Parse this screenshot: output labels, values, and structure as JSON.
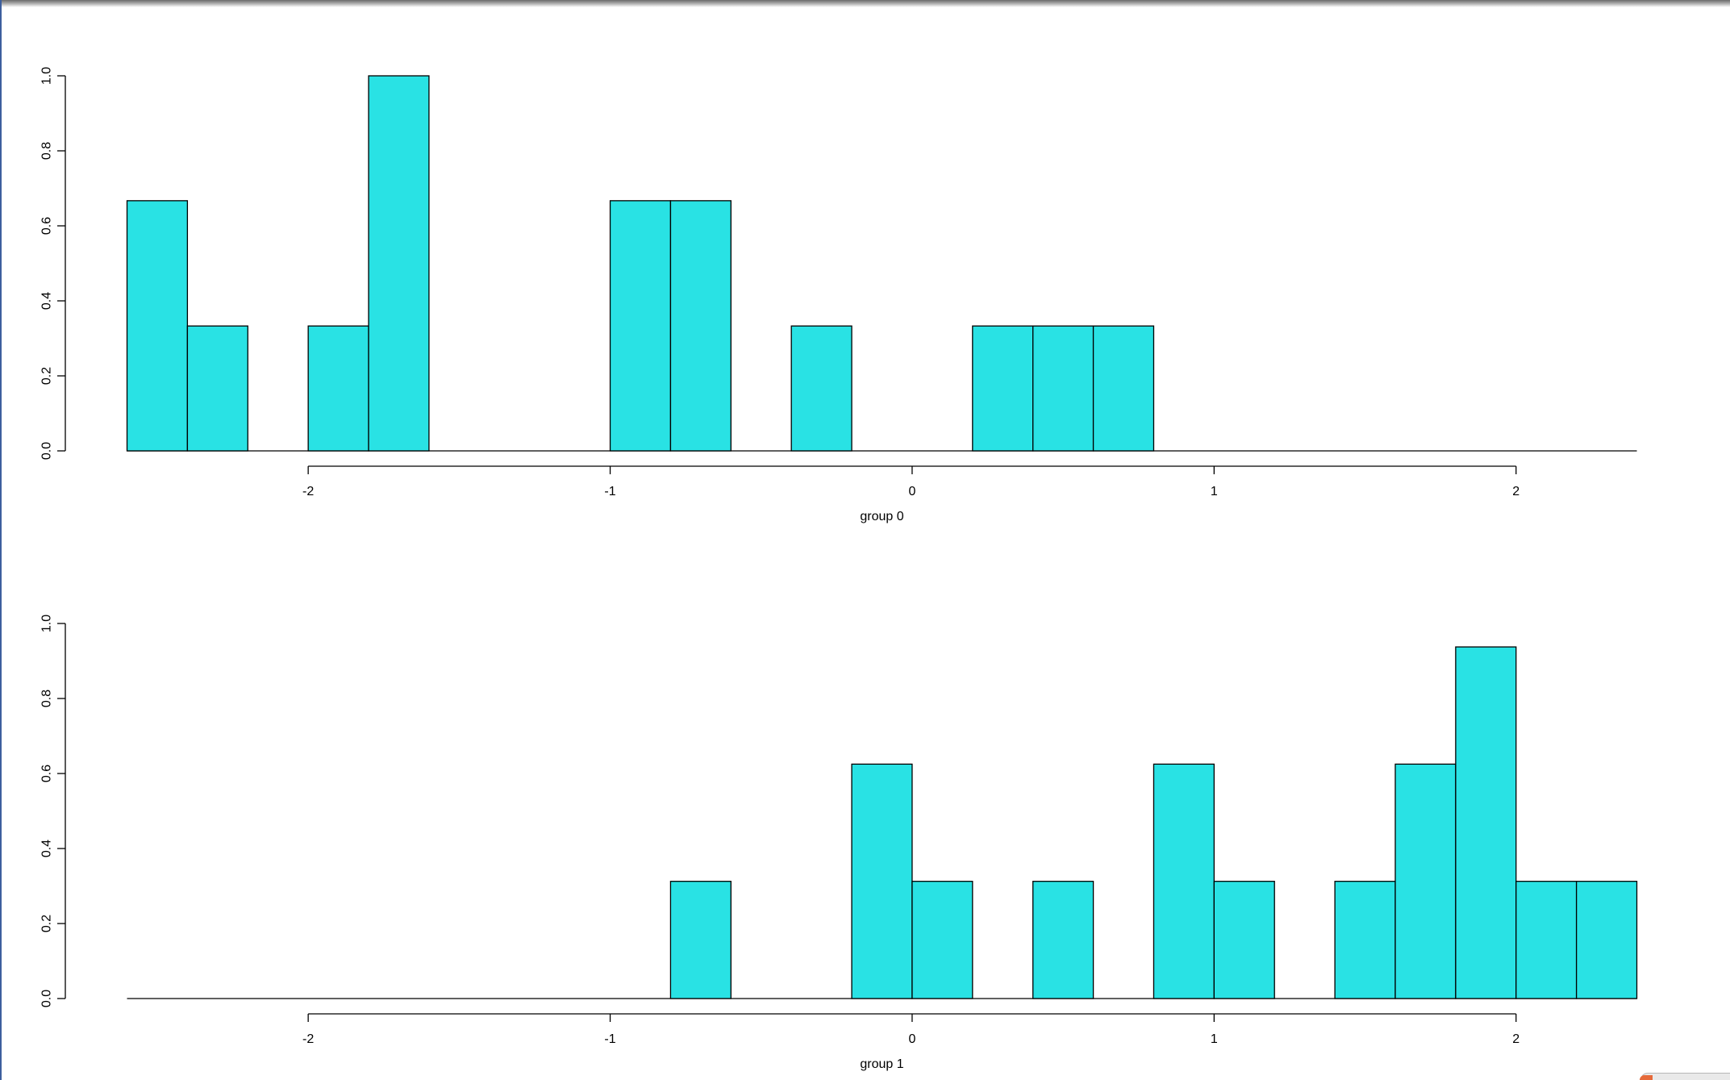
{
  "colors": {
    "bar_fill": "#29e2e4",
    "bar_stroke": "#000000"
  },
  "chart_data": [
    {
      "type": "bar",
      "xlabel": "group 0",
      "ylabel": "",
      "title": "",
      "xlim": [
        -2.6,
        2.4
      ],
      "ylim": [
        0,
        1
      ],
      "x_ticks": [
        -2,
        -1,
        0,
        1,
        2
      ],
      "x_tick_labels": [
        "-2",
        "-1",
        "0",
        "1",
        "2"
      ],
      "y_ticks": [
        0,
        0.2,
        0.4,
        0.6,
        0.8,
        1
      ],
      "y_tick_labels": [
        "0.0",
        "0.2",
        "0.4",
        "0.6",
        "0.8",
        "1.0"
      ],
      "bin_width": 0.2,
      "bins": [
        {
          "x0": -2.6,
          "value": 0.667
        },
        {
          "x0": -2.4,
          "value": 0.333
        },
        {
          "x0": -2.2,
          "value": 0
        },
        {
          "x0": -2.0,
          "value": 0.333
        },
        {
          "x0": -1.8,
          "value": 1.0
        },
        {
          "x0": -1.6,
          "value": 0
        },
        {
          "x0": -1.4,
          "value": 0
        },
        {
          "x0": -1.2,
          "value": 0
        },
        {
          "x0": -1.0,
          "value": 0.667
        },
        {
          "x0": -0.8,
          "value": 0.667
        },
        {
          "x0": -0.6,
          "value": 0
        },
        {
          "x0": -0.4,
          "value": 0.333
        },
        {
          "x0": -0.2,
          "value": 0
        },
        {
          "x0": 0.0,
          "value": 0
        },
        {
          "x0": 0.2,
          "value": 0.333
        },
        {
          "x0": 0.4,
          "value": 0.333
        },
        {
          "x0": 0.6,
          "value": 0.333
        },
        {
          "x0": 0.8,
          "value": 0
        },
        {
          "x0": 1.0,
          "value": 0
        },
        {
          "x0": 1.2,
          "value": 0
        },
        {
          "x0": 1.4,
          "value": 0
        },
        {
          "x0": 1.6,
          "value": 0
        },
        {
          "x0": 1.8,
          "value": 0
        },
        {
          "x0": 2.0,
          "value": 0
        },
        {
          "x0": 2.2,
          "value": 0
        }
      ]
    },
    {
      "type": "bar",
      "xlabel": "group 1",
      "ylabel": "",
      "title": "",
      "xlim": [
        -2.6,
        2.4
      ],
      "ylim": [
        0,
        1
      ],
      "x_ticks": [
        -2,
        -1,
        0,
        1,
        2
      ],
      "x_tick_labels": [
        "-2",
        "-1",
        "0",
        "1",
        "2"
      ],
      "y_ticks": [
        0,
        0.2,
        0.4,
        0.6,
        0.8,
        1
      ],
      "y_tick_labels": [
        "0.0",
        "0.2",
        "0.4",
        "0.6",
        "0.8",
        "1.0"
      ],
      "bin_width": 0.2,
      "bins": [
        {
          "x0": -2.6,
          "value": 0
        },
        {
          "x0": -2.4,
          "value": 0
        },
        {
          "x0": -2.2,
          "value": 0
        },
        {
          "x0": -2.0,
          "value": 0
        },
        {
          "x0": -1.8,
          "value": 0
        },
        {
          "x0": -1.6,
          "value": 0
        },
        {
          "x0": -1.4,
          "value": 0
        },
        {
          "x0": -1.2,
          "value": 0
        },
        {
          "x0": -1.0,
          "value": 0
        },
        {
          "x0": -0.8,
          "value": 0.3125
        },
        {
          "x0": -0.6,
          "value": 0
        },
        {
          "x0": -0.4,
          "value": 0
        },
        {
          "x0": -0.2,
          "value": 0.625
        },
        {
          "x0": 0.0,
          "value": 0.3125
        },
        {
          "x0": 0.2,
          "value": 0
        },
        {
          "x0": 0.4,
          "value": 0.3125
        },
        {
          "x0": 0.6,
          "value": 0
        },
        {
          "x0": 0.8,
          "value": 0.625
        },
        {
          "x0": 1.0,
          "value": 0.3125
        },
        {
          "x0": 1.2,
          "value": 0
        },
        {
          "x0": 1.4,
          "value": 0.3125
        },
        {
          "x0": 1.6,
          "value": 0.625
        },
        {
          "x0": 1.8,
          "value": 0.9375
        },
        {
          "x0": 2.0,
          "value": 0.3125
        },
        {
          "x0": 2.2,
          "value": 0.3125
        }
      ]
    }
  ]
}
